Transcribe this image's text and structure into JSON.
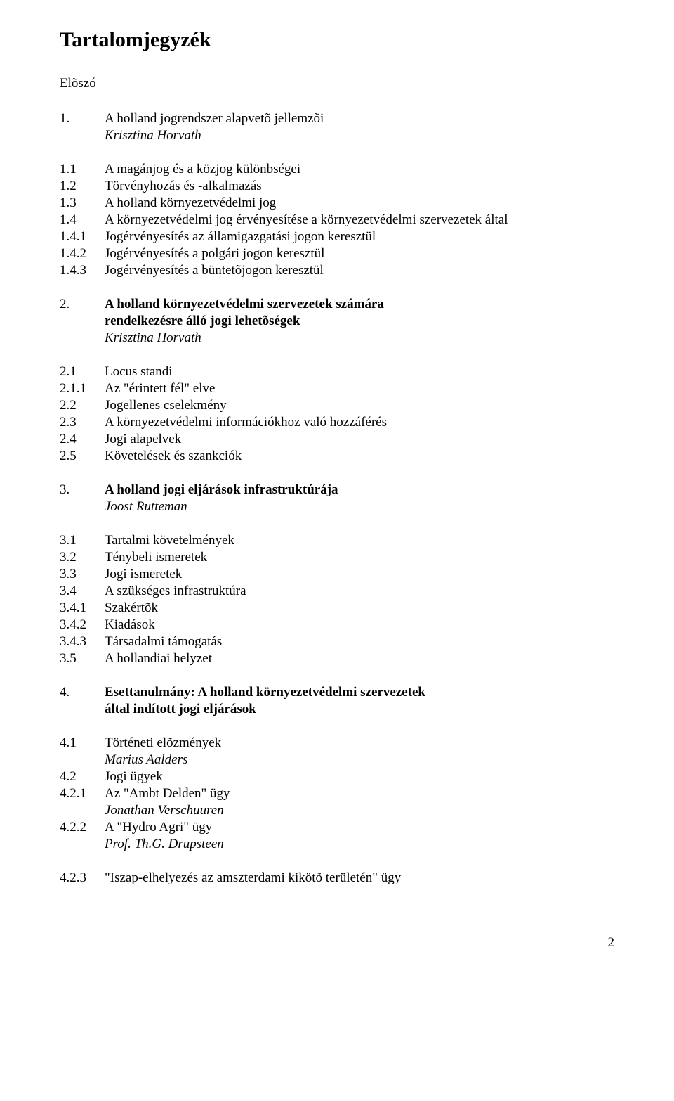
{
  "title": "Tartalomjegyzék",
  "preface": "Elõszó",
  "s1": {
    "num": "1.",
    "title": "A holland jogrendszer alapvetõ jellemzõi",
    "author": "Krisztina Horvath",
    "items": [
      {
        "num": "1.1",
        "label": "A magánjog és a közjog különbségei"
      },
      {
        "num": "1.2",
        "label": "Törvényhozás és -alkalmazás"
      },
      {
        "num": "1.3",
        "label": "A holland környezetvédelmi jog"
      },
      {
        "num": "1.4",
        "label": "A környezetvédelmi jog érvényesítése a környezetvédelmi szervezetek által"
      },
      {
        "num": "1.4.1",
        "label": "Jogérvényesítés az államigazgatási jogon keresztül"
      },
      {
        "num": "1.4.2",
        "label": "Jogérvényesítés a polgári jogon keresztül"
      },
      {
        "num": "1.4.3",
        "label": "Jogérvényesítés a büntetõjogon keresztül"
      }
    ]
  },
  "s2": {
    "num": "2.",
    "title_l1": "A holland környezetvédelmi szervezetek számára",
    "title_l2": "rendelkezésre álló jogi lehetõségek",
    "author": "Krisztina Horvath",
    "items": [
      {
        "num": "2.1",
        "label": "Locus standi"
      },
      {
        "num": "2.1.1",
        "label": "Az \"érintett fél\" elve"
      },
      {
        "num": "2.2",
        "label": "Jogellenes cselekmény"
      },
      {
        "num": "2.3",
        "label": "A környezetvédelmi információkhoz való hozzáférés"
      },
      {
        "num": "2.4",
        "label": "Jogi alapelvek"
      },
      {
        "num": "2.5",
        "label": "Követelések és szankciók"
      }
    ]
  },
  "s3": {
    "num": "3.",
    "title": "A holland jogi eljárások infrastruktúrája",
    "author": "Joost Rutteman",
    "items": [
      {
        "num": "3.1",
        "label": "Tartalmi követelmények"
      },
      {
        "num": "3.2",
        "label": "Ténybeli ismeretek"
      },
      {
        "num": "3.3",
        "label": "Jogi ismeretek"
      },
      {
        "num": "3.4",
        "label": "A szükséges infrastruktúra"
      },
      {
        "num": "3.4.1",
        "label": "Szakértõk"
      },
      {
        "num": "3.4.2",
        "label": "Kiadások"
      },
      {
        "num": "3.4.3",
        "label": "Társadalmi támogatás"
      },
      {
        "num": "3.5",
        "label": "A hollandiai helyzet"
      }
    ]
  },
  "s4": {
    "num": "4.",
    "title_l1": "Esettanulmány: A holland környezetvédelmi szervezetek",
    "title_l2": "által indított jogi eljárások",
    "items": [
      {
        "num": "4.1",
        "label": "Történeti elõzmények",
        "author": "Marius Aalders"
      },
      {
        "num": "4.2",
        "label": "Jogi ügyek"
      },
      {
        "num": "4.2.1",
        "label": "Az \"Ambt Delden\" ügy",
        "author": "Jonathan Verschuuren"
      },
      {
        "num": "4.2.2",
        "label": "A \"Hydro Agri\" ügy",
        "author": "Prof. Th.G. Drupsteen"
      }
    ],
    "last": {
      "num": "4.2.3",
      "label": "\"Iszap-elhelyezés az amszterdami kikötõ területén\" ügy"
    }
  },
  "page_number": "2"
}
